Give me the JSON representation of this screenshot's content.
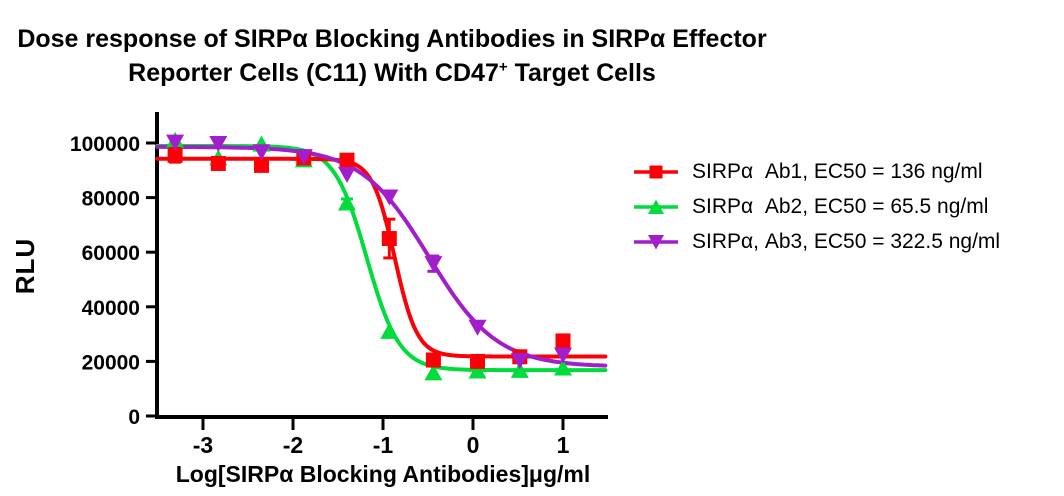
{
  "title": {
    "line1": "Dose response of SIRPα Blocking Antibodies in SIRPα Effector",
    "line2_pre": "Reporter Cells (C11) With CD47",
    "line2_sup": "+",
    "line2_post": " Target Cells"
  },
  "chart_data": {
    "type": "line",
    "title": "Dose response of SIRPα Blocking Antibodies in SIRPα Effector Reporter Cells (C11) With CD47+ Target Cells",
    "xlabel": "Log[SIRPα Blocking Antibodies]μg/ml",
    "ylabel": "RLU",
    "xlim": [
      -3.51,
      1.49
    ],
    "ylim": [
      0,
      110000
    ],
    "grid": false,
    "legend_position": "right",
    "x_ticks": [
      {
        "v": -3,
        "label": "-3"
      },
      {
        "v": -2,
        "label": "-2"
      },
      {
        "v": -1,
        "label": "-1"
      },
      {
        "v": 0,
        "label": "0"
      },
      {
        "v": 1,
        "label": "1"
      }
    ],
    "y_ticks": [
      {
        "v": 0,
        "label": "0"
      },
      {
        "v": 20000,
        "label": "20000"
      },
      {
        "v": 40000,
        "label": "40000"
      },
      {
        "v": 60000,
        "label": "60000"
      },
      {
        "v": 80000,
        "label": "80000"
      },
      {
        "v": 100000,
        "label": "100000"
      }
    ],
    "x": [
      -3.31,
      -2.83,
      -2.35,
      -1.88,
      -1.4,
      -0.93,
      -0.44,
      0.05,
      0.52,
      1.0
    ],
    "series": [
      {
        "name": "SIRPα Ab1",
        "legend": "SIRPα  Ab1, EC50 = 136 ng/ml",
        "ec50_ng_ml": 136,
        "color": "#fb0006",
        "marker": "square",
        "values": [
          95500,
          92500,
          91800,
          94500,
          93700,
          65000,
          20500,
          20000,
          21700,
          27500
        ],
        "errors": [
          2500,
          1500,
          0,
          0,
          0,
          7100,
          1200,
          0,
          0,
          0
        ],
        "fit": {
          "top": 94200,
          "bottom": 21800,
          "logEC50": -0.87,
          "hill": 3.5
        }
      },
      {
        "name": "SIRPα Ab2",
        "legend": "SIRPα  Ab2, EC50 = 65.5 ng/ml",
        "ec50_ng_ml": 65.5,
        "color": "#00dc3c",
        "marker": "triangle-up",
        "values": [
          101000,
          94500,
          99600,
          93800,
          78000,
          31000,
          15800,
          16500,
          16700,
          17600
        ],
        "errors": [
          0,
          0,
          0,
          0,
          1500,
          0,
          0,
          0,
          0,
          0
        ],
        "fit": {
          "top": 98900,
          "bottom": 16800,
          "logEC50": -1.18,
          "hill": 2.4
        }
      },
      {
        "name": "SIRPα Ab3",
        "legend": "SIRPα, Ab3, EC50 = 322.5 ng/ml",
        "ec50_ng_ml": 322.5,
        "color": "#a21ecb",
        "marker": "triangle-down",
        "values": [
          100300,
          99800,
          96800,
          95000,
          88500,
          80200,
          55800,
          32500,
          20300,
          22300
        ],
        "errors": [
          0,
          0,
          0,
          0,
          0,
          0,
          2800,
          0,
          0,
          0
        ],
        "fit": {
          "top": 98600,
          "bottom": 18000,
          "logEC50": -0.49,
          "hill": 1.15
        }
      }
    ]
  }
}
